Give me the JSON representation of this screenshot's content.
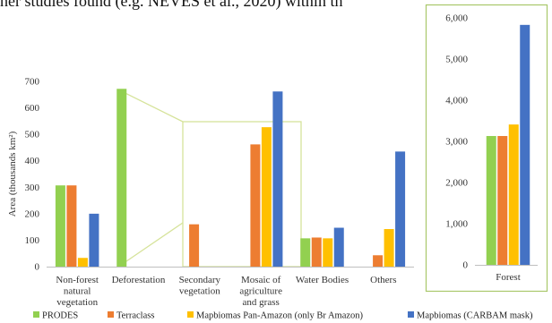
{
  "caption_text": "her studies found (e.g. NEVES et al., 2020) within th",
  "chart_data": [
    {
      "type": "bar",
      "title": "",
      "xlabel": "",
      "ylabel": "Area (thousands km²)",
      "ylim": [
        0,
        700
      ],
      "yticks": [
        "0",
        "100",
        "200",
        "300",
        "400",
        "500",
        "600",
        "700"
      ],
      "categories": [
        [
          "Non-forest",
          "natural",
          "vegetation"
        ],
        [
          "Deforestation"
        ],
        [
          "Secondary",
          "vegetation"
        ],
        [
          "Mosaic of",
          "agriculture",
          "and grass"
        ],
        [
          "Water Bodies"
        ],
        [
          "Others"
        ]
      ],
      "series": [
        {
          "name": "PRODES",
          "color": "#92d050",
          "values": [
            307,
            672,
            0,
            0,
            107,
            0
          ]
        },
        {
          "name": "Terraclass",
          "color": "#ed7d31",
          "values": [
            307,
            0,
            160,
            462,
            110,
            43
          ]
        },
        {
          "name": "Mapbiomas Pan-Amazon (only Br Amazon)",
          "color": "#ffc000",
          "values": [
            33,
            0,
            0,
            527,
            107,
            142
          ]
        },
        {
          "name": "Mapbiomas (CARBAM mask)",
          "color": "#4472c4",
          "values": [
            200,
            0,
            0,
            662,
            147,
            435
          ]
        }
      ],
      "grid": false
    },
    {
      "type": "bar",
      "title": "",
      "xlabel": "",
      "ylabel": "",
      "ylim": [
        0,
        6000
      ],
      "yticks": [
        "0",
        "1,000",
        "2,000",
        "3,000",
        "4,000",
        "5,000",
        "6,000"
      ],
      "categories": [
        [
          "Forest"
        ]
      ],
      "series": [
        {
          "name": "PRODES",
          "color": "#92d050",
          "values": [
            3130
          ]
        },
        {
          "name": "Terraclass",
          "color": "#ed7d31",
          "values": [
            3130
          ]
        },
        {
          "name": "Mapbiomas Pan-Amazon (only Br Amazon)",
          "color": "#ffc000",
          "values": [
            3410
          ]
        },
        {
          "name": "Mapbiomas (CARBAM mask)",
          "color": "#4472c4",
          "values": [
            5830
          ]
        }
      ],
      "grid": false,
      "frame_color": "#a9c76a"
    }
  ],
  "legend": {
    "placement": "bottom",
    "items": [
      {
        "label": "PRODES",
        "color": "#92d050"
      },
      {
        "label": "Terraclass",
        "color": "#ed7d31"
      },
      {
        "label": "Mapbiomas Pan-Amazon (only Br Amazon)",
        "color": "#ffc000"
      },
      {
        "label": "Mapbiomas (CARBAM mask)",
        "color": "#4472c4"
      }
    ]
  },
  "zoom_lines_color": "#d6e39a"
}
